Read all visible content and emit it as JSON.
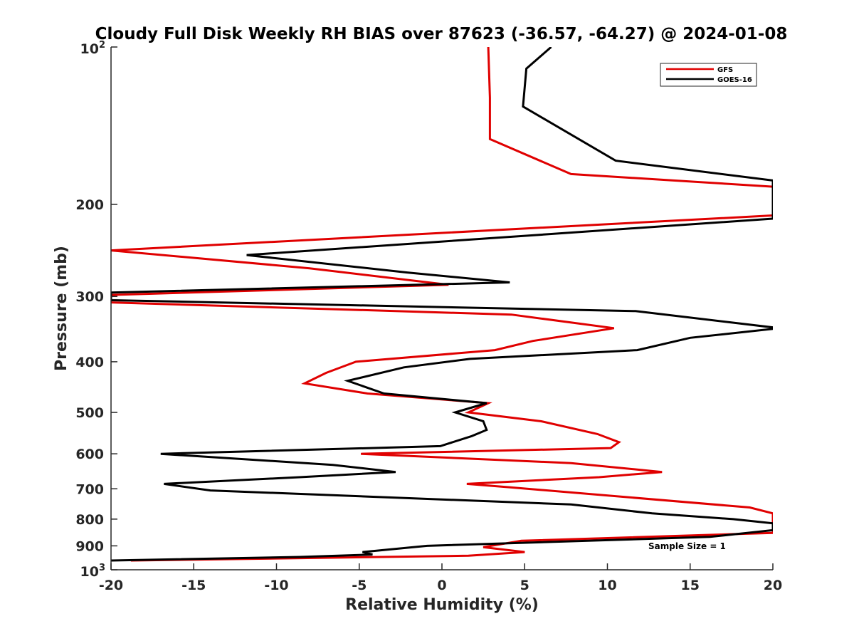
{
  "chart_data": {
    "type": "line",
    "title": "Cloudy Full Disk Weekly RH BIAS over 87623 (-36.57, -64.27) @ 2024-01-08",
    "xlabel": "Relative Humidity (%)",
    "ylabel": "Pressure (mb)",
    "xlim": [
      -20,
      20
    ],
    "ylim": [
      100,
      1000
    ],
    "yscale": "log",
    "y_reversed": true,
    "x_ticks": [
      "-20",
      "-15",
      "-10",
      "-5",
      "0",
      "5",
      "10",
      "15",
      "20"
    ],
    "y_ticks": [
      {
        "value": 100,
        "label": "10",
        "sup": "2"
      },
      {
        "value": 200,
        "label": "200",
        "sup": ""
      },
      {
        "value": 300,
        "label": "300",
        "sup": ""
      },
      {
        "value": 400,
        "label": "400",
        "sup": ""
      },
      {
        "value": 500,
        "label": "500",
        "sup": ""
      },
      {
        "value": 600,
        "label": "600",
        "sup": ""
      },
      {
        "value": 700,
        "label": "700",
        "sup": ""
      },
      {
        "value": 800,
        "label": "800",
        "sup": ""
      },
      {
        "value": 900,
        "label": "900",
        "sup": ""
      },
      {
        "value": 1000,
        "label": "10",
        "sup": "3"
      }
    ],
    "grid": false,
    "legend_position": "top-right",
    "annotation": "Sample Size = 1",
    "series": [
      {
        "name": "GFS",
        "color": "#e00000",
        "points": [
          [
            2.8,
            100
          ],
          [
            2.9,
            125
          ],
          [
            2.9,
            150
          ],
          [
            7.8,
            175
          ],
          [
            20,
            185
          ],
          [
            20,
            210
          ],
          [
            -20,
            245
          ],
          [
            -8,
            265
          ],
          [
            0.4,
            285
          ],
          [
            -20,
            298
          ],
          [
            -20,
            308
          ],
          [
            4.2,
            325
          ],
          [
            10.4,
            345
          ],
          [
            5.5,
            365
          ],
          [
            3.2,
            380
          ],
          [
            -5.2,
            400
          ],
          [
            -7,
            420
          ],
          [
            -8.3,
            440
          ],
          [
            -4.5,
            460
          ],
          [
            2.8,
            480
          ],
          [
            1.6,
            500
          ],
          [
            6,
            520
          ],
          [
            9.4,
            550
          ],
          [
            10.7,
            570
          ],
          [
            10.2,
            585
          ],
          [
            -4.9,
            600
          ],
          [
            7.8,
            625
          ],
          [
            13.3,
            650
          ],
          [
            9.5,
            665
          ],
          [
            1.5,
            685
          ],
          [
            4,
            695
          ],
          [
            18.6,
            760
          ],
          [
            20,
            780
          ],
          [
            20,
            850
          ],
          [
            4.8,
            880
          ],
          [
            2.5,
            905
          ],
          [
            5,
            925
          ],
          [
            1.6,
            940
          ],
          [
            -18.8,
            960
          ]
        ]
      },
      {
        "name": "GOES-16",
        "color": "#000000",
        "points": [
          [
            6.6,
            100
          ],
          [
            5.1,
            110
          ],
          [
            4.9,
            130
          ],
          [
            10.5,
            165
          ],
          [
            20,
            180
          ],
          [
            20,
            213
          ],
          [
            -11.8,
            250
          ],
          [
            -2.1,
            270
          ],
          [
            4.1,
            282
          ],
          [
            -20,
            295
          ],
          [
            -20,
            305
          ],
          [
            11.7,
            320
          ],
          [
            20.4,
            345
          ],
          [
            15,
            360
          ],
          [
            11.8,
            380
          ],
          [
            1.7,
            395
          ],
          [
            -2.3,
            410
          ],
          [
            -5.7,
            435
          ],
          [
            -3.5,
            460
          ],
          [
            2.7,
            480
          ],
          [
            0.8,
            500
          ],
          [
            2.5,
            520
          ],
          [
            2.7,
            540
          ],
          [
            1.8,
            555
          ],
          [
            -0.1,
            580
          ],
          [
            -17,
            600
          ],
          [
            -6.6,
            630
          ],
          [
            -2.8,
            650
          ],
          [
            -8.6,
            665
          ],
          [
            -16.8,
            685
          ],
          [
            -14,
            705
          ],
          [
            7.8,
            750
          ],
          [
            12.7,
            780
          ],
          [
            17.6,
            800
          ],
          [
            20,
            815
          ],
          [
            20,
            840
          ],
          [
            16.2,
            865
          ],
          [
            -0.9,
            900
          ],
          [
            -4.8,
            925
          ],
          [
            -4.2,
            935
          ],
          [
            -8.6,
            945
          ],
          [
            -20,
            960
          ]
        ]
      }
    ]
  }
}
